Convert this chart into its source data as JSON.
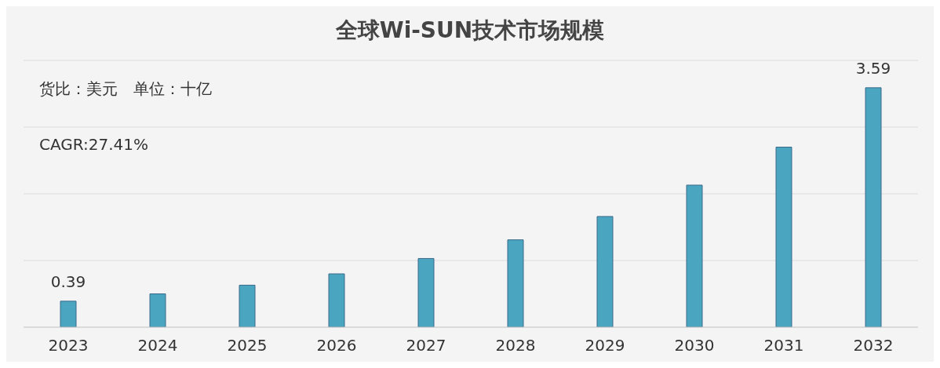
{
  "chart_data": {
    "type": "bar",
    "title": "全球Wi-SUN技术市场规模",
    "annotations": [
      "货比：美元　单位：十亿",
      "CAGR:27.41%"
    ],
    "categories": [
      "2023",
      "2024",
      "2025",
      "2026",
      "2027",
      "2028",
      "2029",
      "2030",
      "2031",
      "2032"
    ],
    "values": [
      0.39,
      0.5,
      0.63,
      0.8,
      1.03,
      1.31,
      1.66,
      2.13,
      2.7,
      3.59
    ],
    "value_labels": [
      "0.39",
      null,
      null,
      null,
      null,
      null,
      null,
      null,
      null,
      "3.59"
    ],
    "color": "#4aa6c0",
    "ylim": [
      0,
      4
    ],
    "yticks": [
      {
        "value": 0,
        "label": null
      },
      {
        "value": 1,
        "label": null
      },
      {
        "value": 2,
        "label": null
      },
      {
        "value": 3,
        "label": null
      },
      {
        "value": 4,
        "label": null
      }
    ],
    "grid": "y",
    "tick_labels": "x"
  }
}
